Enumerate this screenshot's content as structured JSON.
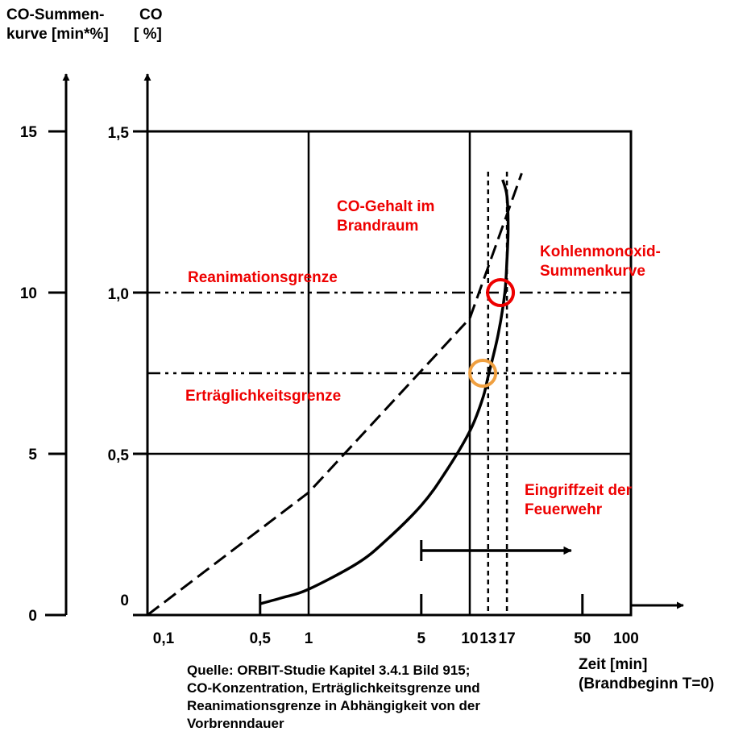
{
  "chart_data": {
    "type": "line",
    "title": "",
    "left_axis": {
      "label_lines": [
        "CO-Summen-",
        "kurve [min*%]"
      ],
      "ticks": [
        "0",
        "5",
        "10",
        "15"
      ],
      "tick_values": [
        0,
        5,
        10,
        15
      ]
    },
    "right_axis": {
      "label_lines": [
        "CO",
        "[ %]"
      ],
      "ticks": [
        "0",
        "0,5",
        "1,0",
        "1,5"
      ],
      "tick_values": [
        0,
        0.5,
        1.0,
        1.5
      ],
      "ylim": [
        0,
        1.5
      ]
    },
    "x_axis": {
      "scale": "log",
      "label_lines": [
        "Zeit [min]",
        "(Brandbeginn T=0)"
      ],
      "ticks": [
        "0,1",
        "0,5",
        "1",
        "5",
        "10",
        "13",
        "17",
        "50",
        "100"
      ],
      "tick_values": [
        0.1,
        0.5,
        1,
        5,
        10,
        13,
        17,
        50,
        100
      ],
      "xlim": [
        0.1,
        100
      ]
    },
    "grid": true,
    "series": [
      {
        "name": "CO-Gehalt im Brandraum",
        "style": "dashed",
        "color": "#000000",
        "x": [
          0.1,
          1,
          10,
          21
        ],
        "y": [
          0.0,
          0.38,
          0.92,
          1.37
        ]
      },
      {
        "name": "Kohlenmonoxid-Summenkurve",
        "style": "solid",
        "color": "#000000",
        "x": [
          0.5,
          0.7,
          1,
          2,
          3,
          5,
          7,
          10,
          12,
          13,
          15,
          16.5,
          17,
          17.3,
          17,
          16
        ],
        "y": [
          0.035,
          0.055,
          0.08,
          0.16,
          0.23,
          0.34,
          0.44,
          0.57,
          0.67,
          0.74,
          0.87,
          1.0,
          1.1,
          1.2,
          1.3,
          1.35
        ]
      }
    ],
    "reference_lines": [
      {
        "label_lines": [
          "Reanimationsgrenze"
        ],
        "y": 1.0,
        "style": "dash-dot"
      },
      {
        "label_lines": [
          "Erträglichkeitsgrenze"
        ],
        "y": 0.75,
        "style": "dash-dot"
      },
      {
        "x": 13,
        "style": "dotted"
      },
      {
        "x": 17,
        "style": "dotted"
      }
    ],
    "annotations": [
      {
        "label_lines": [
          "CO-Gehalt im",
          "Brandraum"
        ],
        "color": "#ee0000"
      },
      {
        "label_lines": [
          "Kohlenmonoxid-",
          "Summenkurve"
        ],
        "color": "#ee0000"
      },
      {
        "label_lines": [
          "Eingriffzeit der",
          "Feuerwehr"
        ],
        "color": "#ee0000"
      }
    ],
    "markers": [
      {
        "x": 17,
        "y": 1.0,
        "color": "#ee0000",
        "shape": "circle"
      },
      {
        "x": 13.2,
        "y": 0.75,
        "color": "#f0a040",
        "shape": "circle"
      }
    ],
    "arrow": {
      "from_x": 5,
      "to_x": 50,
      "y": 0.21
    }
  },
  "caption_lines": [
    "Quelle: ORBIT-Studie Kapitel 3.4.1 Bild 915;",
    "CO-Konzentration, Erträglichkeitsgrenze und",
    "Reanimationsgrenze in Abhängigkeit von der",
    "Vorbrenndauer"
  ]
}
